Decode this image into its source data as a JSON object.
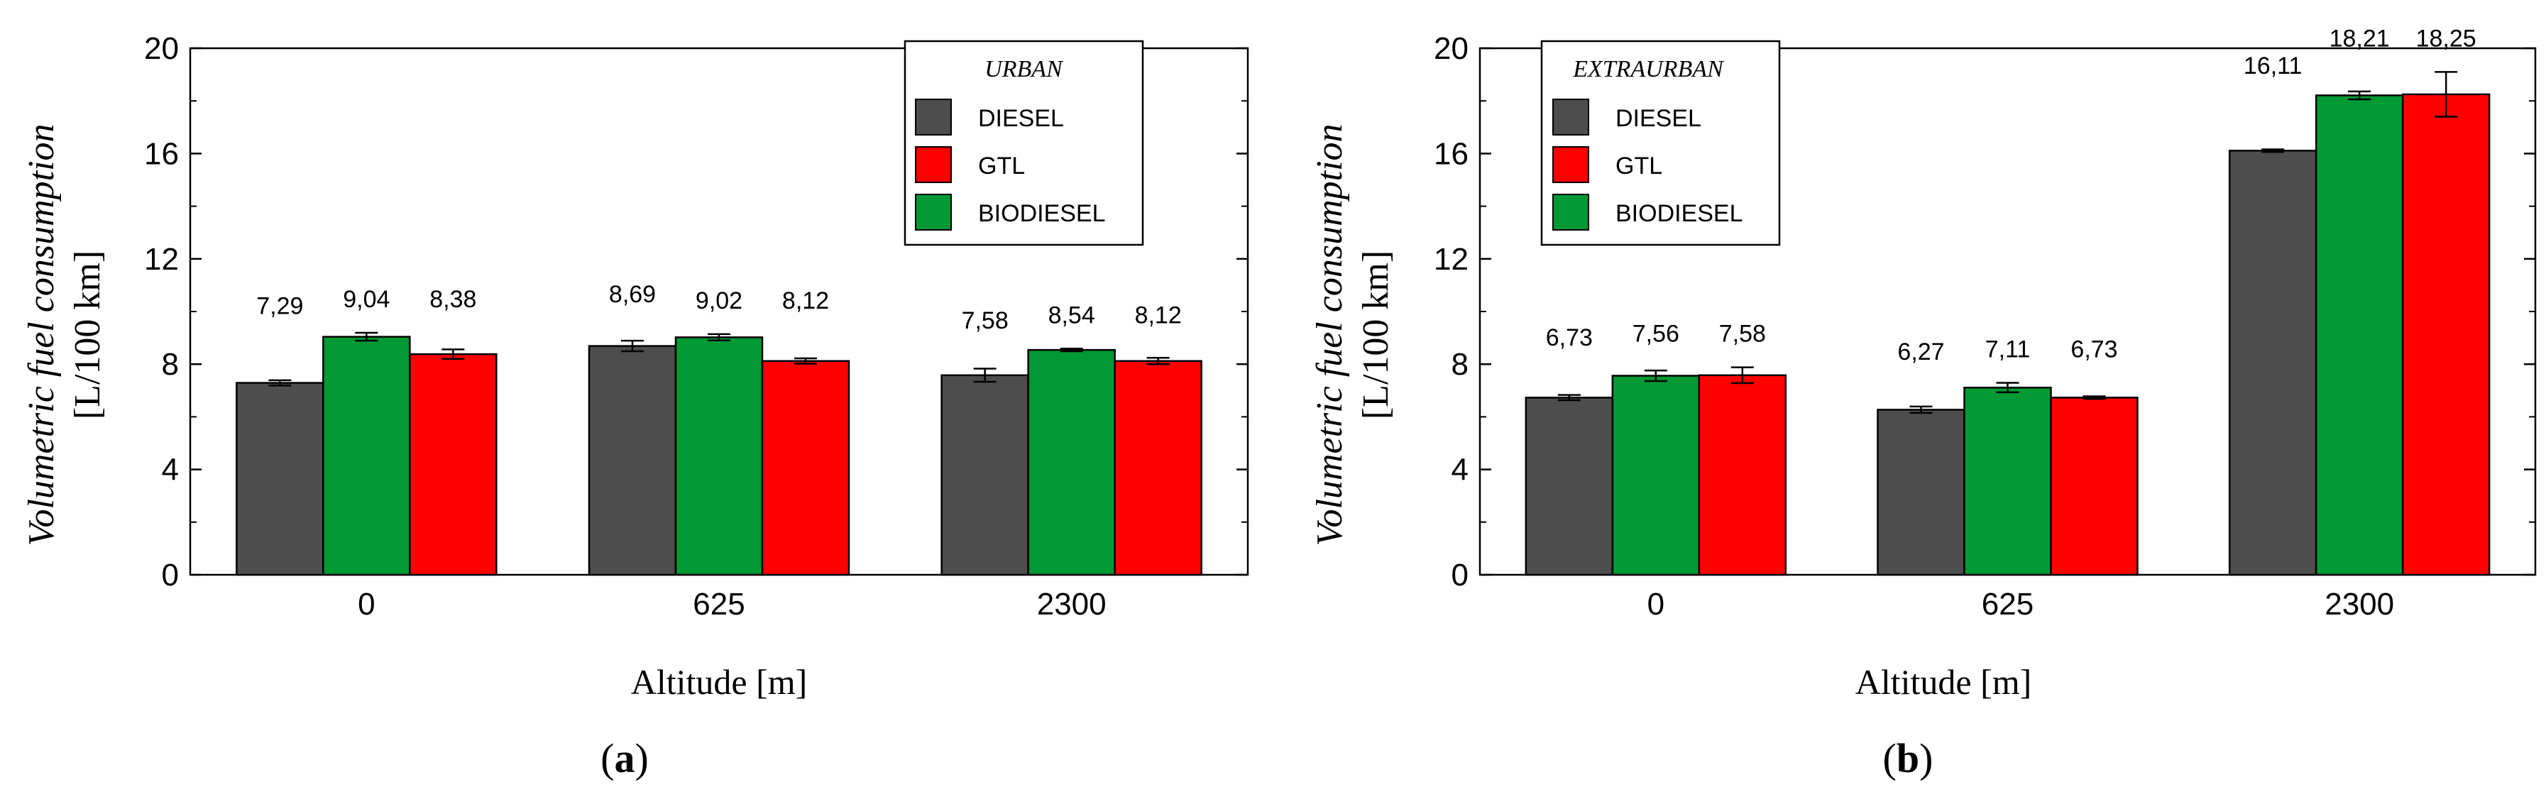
{
  "colors": {
    "DIESEL": "#4d4d4d",
    "GTL": "#ff0000",
    "BIODIESEL": "#009933"
  },
  "chart_data": [
    {
      "type": "bar",
      "panel": "(a)",
      "caption_open": "(",
      "caption_letter": "a",
      "caption_close": ")",
      "legend_title": "URBAN",
      "legend_entries": [
        "DIESEL",
        "GTL",
        "BIODIESEL"
      ],
      "legend_position": "top-right",
      "xlabel": "Altitude [m]",
      "ylabel": "Volumetric fuel consumption",
      "ylabel_unit": "[L/100 km]",
      "ylim": [
        0,
        20
      ],
      "yticks": [
        "0",
        "4",
        "8",
        "12",
        "16",
        "20"
      ],
      "categories": [
        "0",
        "625",
        "2300"
      ],
      "bar_order": [
        "DIESEL",
        "BIODIESEL",
        "GTL"
      ],
      "series": [
        {
          "name": "DIESEL",
          "values": [
            7.29,
            8.69,
            7.58
          ],
          "errors": [
            0.1,
            0.2,
            0.25
          ],
          "labels": [
            "7,29",
            "8,69",
            "7,58"
          ]
        },
        {
          "name": "BIODIESEL",
          "values": [
            9.04,
            9.02,
            8.54
          ],
          "errors": [
            0.15,
            0.12,
            0.05
          ],
          "labels": [
            "9,04",
            "9,02",
            "8,54"
          ]
        },
        {
          "name": "GTL",
          "values": [
            8.38,
            8.12,
            8.12
          ],
          "errors": [
            0.18,
            0.1,
            0.12
          ],
          "labels": [
            "8,38",
            "8,12",
            "8,12"
          ]
        }
      ]
    },
    {
      "type": "bar",
      "panel": "(b)",
      "caption_open": "(",
      "caption_letter": "b",
      "caption_close": ")",
      "legend_title": "EXTRAURBAN",
      "legend_entries": [
        "DIESEL",
        "GTL",
        "BIODIESEL"
      ],
      "legend_position": "top-left",
      "xlabel": "Altitude [m]",
      "ylabel": "Volumetric fuel consumption",
      "ylabel_unit": "[L/100 km]",
      "ylim": [
        0,
        20
      ],
      "yticks": [
        "0",
        "4",
        "8",
        "12",
        "16",
        "20"
      ],
      "categories": [
        "0",
        "625",
        "2300"
      ],
      "bar_order": [
        "DIESEL",
        "BIODIESEL",
        "GTL"
      ],
      "series": [
        {
          "name": "DIESEL",
          "values": [
            6.73,
            6.27,
            16.11
          ],
          "errors": [
            0.1,
            0.12,
            0.05
          ],
          "labels": [
            "6,73",
            "6,27",
            "16,11"
          ]
        },
        {
          "name": "BIODIESEL",
          "values": [
            7.56,
            7.11,
            18.21
          ],
          "errors": [
            0.2,
            0.18,
            0.15
          ],
          "labels": [
            "7,56",
            "7,11",
            "18,21"
          ]
        },
        {
          "name": "GTL",
          "values": [
            7.58,
            6.73,
            18.25
          ],
          "errors": [
            0.3,
            0.05,
            0.85
          ],
          "labels": [
            "7,58",
            "6,73",
            "18,25"
          ]
        }
      ]
    }
  ]
}
